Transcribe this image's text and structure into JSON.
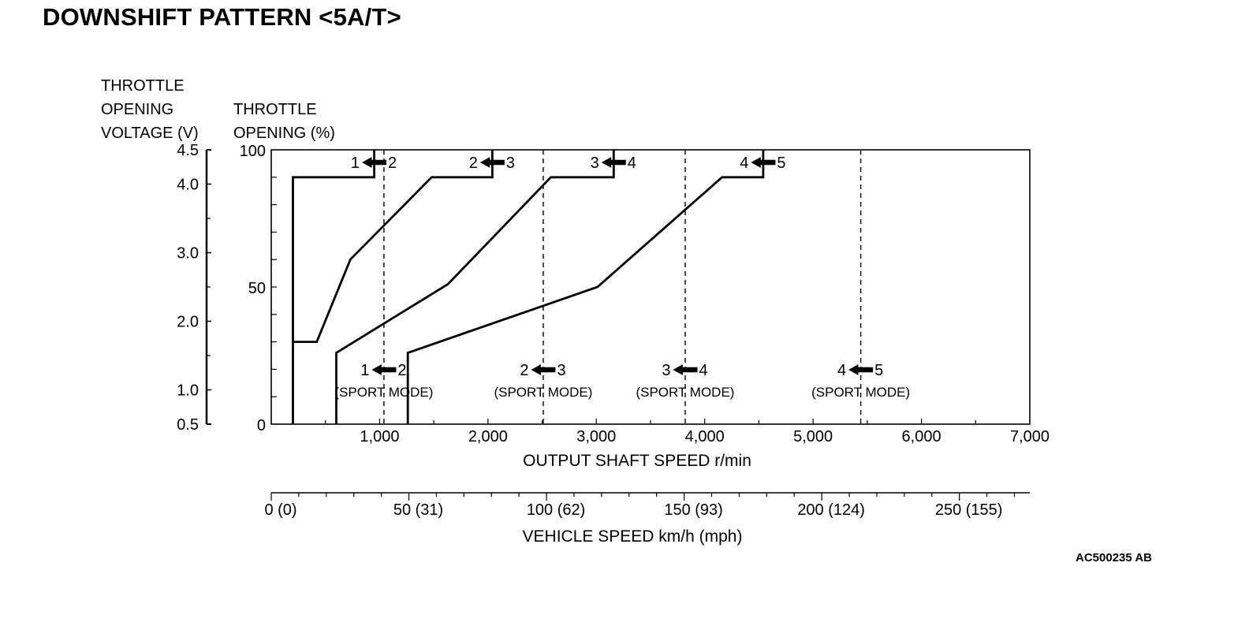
{
  "title": "DOWNSHIFT PATTERN <5A/T>",
  "figure_code": "AC500235 AB",
  "left_axis_title": [
    "THROTTLE",
    "OPENING",
    "VOLTAGE (V)"
  ],
  "right_axis_title": [
    "THROTTLE",
    "OPENING (%)"
  ],
  "chart_data": {
    "type": "line",
    "title": "DOWNSHIFT PATTERN <5A/T>",
    "xlabel": "OUTPUT SHAFT SPEED r/min",
    "ylabel": "THROTTLE OPENING (%)",
    "xlim": [
      0,
      7000
    ],
    "ylim": [
      0,
      100
    ],
    "x_ticks": [
      {
        "value": 1000,
        "label": "1,000"
      },
      {
        "value": 2000,
        "label": "2,000"
      },
      {
        "value": 3000,
        "label": "3,000"
      },
      {
        "value": 4000,
        "label": "4,000"
      },
      {
        "value": 5000,
        "label": "5,000"
      },
      {
        "value": 6000,
        "label": "6,000"
      },
      {
        "value": 7000,
        "label": "7,000"
      }
    ],
    "y_ticks": [
      {
        "value": 0,
        "label": "0"
      },
      {
        "value": 50,
        "label": "50"
      },
      {
        "value": 100,
        "label": "100"
      }
    ],
    "voltage_axis": {
      "label": "THROTTLE OPENING VOLTAGE (V)",
      "ticks": [
        {
          "value": 0.5,
          "label": "0.5",
          "y_pct": 0
        },
        {
          "value": 1.0,
          "label": "1.0",
          "y_pct": 12.5
        },
        {
          "value": 2.0,
          "label": "2.0",
          "y_pct": 37.5
        },
        {
          "value": 3.0,
          "label": "3.0",
          "y_pct": 62.5
        },
        {
          "value": 4.0,
          "label": "4.0",
          "y_pct": 87.5
        },
        {
          "value": 4.5,
          "label": "4.5",
          "y_pct": 100
        }
      ]
    },
    "vehicle_speed_axis": {
      "label": "VEHICLE SPEED km/h (mph)",
      "ticks": [
        {
          "value": 0,
          "label": "0 (0)",
          "rpm": 0
        },
        {
          "value": 50,
          "label": "50 (31)",
          "rpm": 1270
        },
        {
          "value": 100,
          "label": "100 (62)",
          "rpm": 2540
        },
        {
          "value": 150,
          "label": "150 (93)",
          "rpm": 3810
        },
        {
          "value": 200,
          "label": "200 (124)",
          "rpm": 5080
        },
        {
          "value": 250,
          "label": "250 (155)",
          "rpm": 6350
        }
      ]
    },
    "series": [
      {
        "points": [
          [
            200,
            0
          ],
          [
            200,
            90
          ],
          [
            950,
            90
          ],
          [
            950,
            100
          ]
        ]
      },
      {
        "points": [
          [
            200,
            30
          ],
          [
            420,
            30
          ],
          [
            730,
            60
          ],
          [
            1480,
            90
          ],
          [
            2040,
            90
          ],
          [
            2040,
            100
          ]
        ]
      },
      {
        "points": [
          [
            600,
            0
          ],
          [
            600,
            26
          ],
          [
            1630,
            51
          ],
          [
            2580,
            90
          ],
          [
            3160,
            90
          ],
          [
            3160,
            100
          ]
        ]
      },
      {
        "points": [
          [
            1260,
            0
          ],
          [
            1260,
            26
          ],
          [
            3010,
            50
          ],
          [
            4160,
            90
          ],
          [
            4540,
            90
          ],
          [
            4540,
            100
          ]
        ]
      }
    ],
    "sport_mode_lines": [
      {
        "x": 1040,
        "label": "1←2"
      },
      {
        "x": 2510,
        "label": "2←3"
      },
      {
        "x": 3820,
        "label": "3←4"
      },
      {
        "x": 5440,
        "label": "4←5"
      }
    ],
    "top_labels": [
      {
        "x": 950,
        "from": "1",
        "to": "2"
      },
      {
        "x": 2040,
        "from": "2",
        "to": "3"
      },
      {
        "x": 3160,
        "from": "3",
        "to": "4"
      },
      {
        "x": 4540,
        "from": "4",
        "to": "5"
      }
    ],
    "bottom_labels": [
      {
        "x": 1040,
        "from": "1",
        "to": "2",
        "mode": "(SPORT MODE)"
      },
      {
        "x": 2510,
        "from": "2",
        "to": "3",
        "mode": "(SPORT MODE)"
      },
      {
        "x": 3820,
        "from": "3",
        "to": "4",
        "mode": "(SPORT MODE)"
      },
      {
        "x": 5440,
        "from": "4",
        "to": "5",
        "mode": "(SPORT MODE)"
      }
    ]
  }
}
